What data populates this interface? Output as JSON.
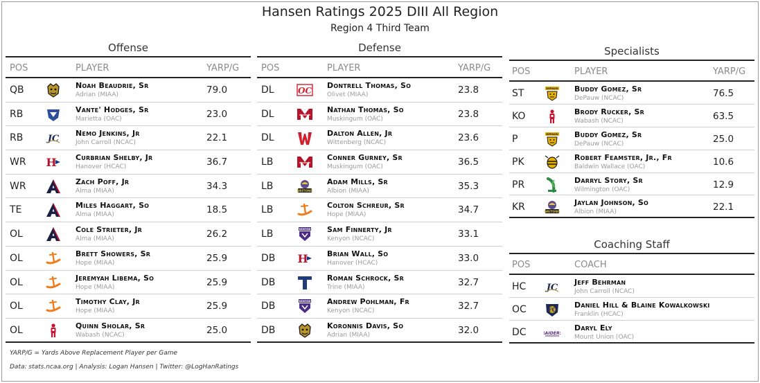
{
  "header": {
    "title": "Hansen Ratings 2025 DIII All Region",
    "subtitle": "Region 4 Third Team"
  },
  "colors": {
    "rule": "#222222",
    "muted": "#9a9a9a"
  },
  "offense": {
    "title": "Offense",
    "headers": {
      "pos": "POS",
      "player": "PLAYER",
      "value": "YARP/G"
    },
    "rows": [
      {
        "pos": "QB",
        "name": "Noah Beaudrie, Sr",
        "team": "Adrian (MIAA)",
        "value": "79.0",
        "logo": "adrian-bulldog-logo-icon"
      },
      {
        "pos": "RB",
        "name": "Vante' Hodges, Sr",
        "team": "Marietta (OAC)",
        "value": "23.0",
        "logo": "marietta-pioneer-logo-icon"
      },
      {
        "pos": "RB",
        "name": "Nemo Jenkins, Jr",
        "team": "John Carroll (NCAC)",
        "value": "22.1",
        "logo": "john-carroll-jcu-logo-icon"
      },
      {
        "pos": "WR",
        "name": "Curbrian Shelby, Jr",
        "team": "Hanover (HCAC)",
        "value": "36.7",
        "logo": "hanover-h-logo-icon"
      },
      {
        "pos": "WR",
        "name": "Zach Poff, Jr",
        "team": "Alma (MIAA)",
        "value": "34.3",
        "logo": "alma-a-logo-icon"
      },
      {
        "pos": "TE",
        "name": "Miles Haggart, So",
        "team": "Alma (MIAA)",
        "value": "18.5",
        "logo": "alma-a-logo-icon"
      },
      {
        "pos": "OL",
        "name": "Cole Strieter, Jr",
        "team": "Alma (MIAA)",
        "value": "26.2",
        "logo": "alma-a-logo-icon"
      },
      {
        "pos": "OL",
        "name": "Brett Showers, Sr",
        "team": "Hope (MIAA)",
        "value": "25.9",
        "logo": "hope-anchor-logo-icon"
      },
      {
        "pos": "OL",
        "name": "Jeremyah Libema, So",
        "team": "Hope (MIAA)",
        "value": "25.9",
        "logo": "hope-anchor-logo-icon"
      },
      {
        "pos": "OL",
        "name": "Timothy Clay, Jr",
        "team": "Hope (MIAA)",
        "value": "25.9",
        "logo": "hope-anchor-logo-icon"
      },
      {
        "pos": "OL",
        "name": "Quinn Sholar, Sr",
        "team": "Wabash (NCAC)",
        "value": "25.0",
        "logo": "wabash-little-giant-logo-icon"
      }
    ]
  },
  "defense": {
    "title": "Defense",
    "headers": {
      "pos": "POS",
      "player": "PLAYER",
      "value": "YARP/G"
    },
    "rows": [
      {
        "pos": "DL",
        "name": "Dontrell Thomas, So",
        "team": "Olivet (MIAA)",
        "value": "23.8",
        "logo": "olivet-oc-logo-icon"
      },
      {
        "pos": "DL",
        "name": "Nathan Thomas, So",
        "team": "Muskingum (OAC)",
        "value": "23.8",
        "logo": "muskingum-m-logo-icon"
      },
      {
        "pos": "DL",
        "name": "Dalton Allen, Jr",
        "team": "Wittenberg (NCAC)",
        "value": "23.6",
        "logo": "wittenberg-w-logo-icon"
      },
      {
        "pos": "LB",
        "name": "Conner Gurney, Sr",
        "team": "Muskingum (OAC)",
        "value": "36.5",
        "logo": "muskingum-m-logo-icon"
      },
      {
        "pos": "LB",
        "name": "Adam Mills, Sr",
        "team": "Albion (MIAA)",
        "value": "35.3",
        "logo": "albion-britons-logo-icon"
      },
      {
        "pos": "LB",
        "name": "Colton Schreur, Sr",
        "team": "Hope (MIAA)",
        "value": "34.7",
        "logo": "hope-anchor-logo-icon"
      },
      {
        "pos": "LB",
        "name": "Sam Finnerty, Jr",
        "team": "Kenyon (NCAC)",
        "value": "33.1",
        "logo": "kenyon-shield-logo-icon"
      },
      {
        "pos": "DB",
        "name": "Brian Wall, So",
        "team": "Hanover (HCAC)",
        "value": "33.0",
        "logo": "hanover-h-logo-icon"
      },
      {
        "pos": "DB",
        "name": "Roman Schrock, Sr",
        "team": "Trine (MIAA)",
        "value": "32.7",
        "logo": "trine-t-logo-icon"
      },
      {
        "pos": "DB",
        "name": "Andrew Pohlman, Fr",
        "team": "Kenyon (NCAC)",
        "value": "32.7",
        "logo": "kenyon-shield-logo-icon"
      },
      {
        "pos": "DB",
        "name": "Koronnis Davis, So",
        "team": "Adrian (MIAA)",
        "value": "32.0",
        "logo": "adrian-bulldog-logo-icon"
      }
    ]
  },
  "specialists": {
    "title": "Specialists",
    "headers": {
      "pos": "POS",
      "player": "PLAYER",
      "value": "YARP/G"
    },
    "rows": [
      {
        "pos": "ST",
        "name": "Buddy Gomez, Sr",
        "team": "DePauw (NCAC)",
        "value": "76.5",
        "logo": "depauw-tiger-logo-icon"
      },
      {
        "pos": "KO",
        "name": "Brody Rucker, Sr",
        "team": "Wabash (NCAC)",
        "value": "63.5",
        "logo": "wabash-little-giant-logo-icon"
      },
      {
        "pos": "P",
        "name": "Buddy Gomez, Sr",
        "team": "DePauw (NCAC)",
        "value": "25.0",
        "logo": "depauw-tiger-logo-icon"
      },
      {
        "pos": "PK",
        "name": "Robert Feamster, Jr., Fr",
        "team": "Baldwin Wallace (OAC)",
        "value": "10.6",
        "logo": "baldwin-wallace-jacket-logo-icon"
      },
      {
        "pos": "PR",
        "name": "Darryl Story, Sr",
        "team": "Wilmington (OAC)",
        "value": "12.9",
        "logo": "wilmington-quakers-logo-icon"
      },
      {
        "pos": "KR",
        "name": "Jaylan Johnson, So",
        "team": "Albion (MIAA)",
        "value": "22.1",
        "logo": "albion-britons-logo-icon"
      }
    ]
  },
  "coaching": {
    "title": "Coaching Staff",
    "headers": {
      "pos": "POS",
      "player": "COACH"
    },
    "rows": [
      {
        "pos": "HC",
        "name": "Jeff Behrman",
        "team": "John Carroll (NCAC)",
        "logo": "john-carroll-jcu-logo-icon"
      },
      {
        "pos": "OC",
        "name": "Daniel Hill & Blaine Kowalkowski",
        "team": "Franklin (HCAC)",
        "logo": "franklin-grizzly-logo-icon"
      },
      {
        "pos": "DC",
        "name": "Daryl Ely",
        "team": "Mount Union (OAC)",
        "logo": "mount-union-raiders-logo-icon"
      }
    ]
  },
  "footer": {
    "note": "YARP/G = Yards Above Replacement Player per Game",
    "credits": "Data: stats.ncaa.org | Analysis: Logan Hansen | Twitter: @LogHanRatings"
  }
}
